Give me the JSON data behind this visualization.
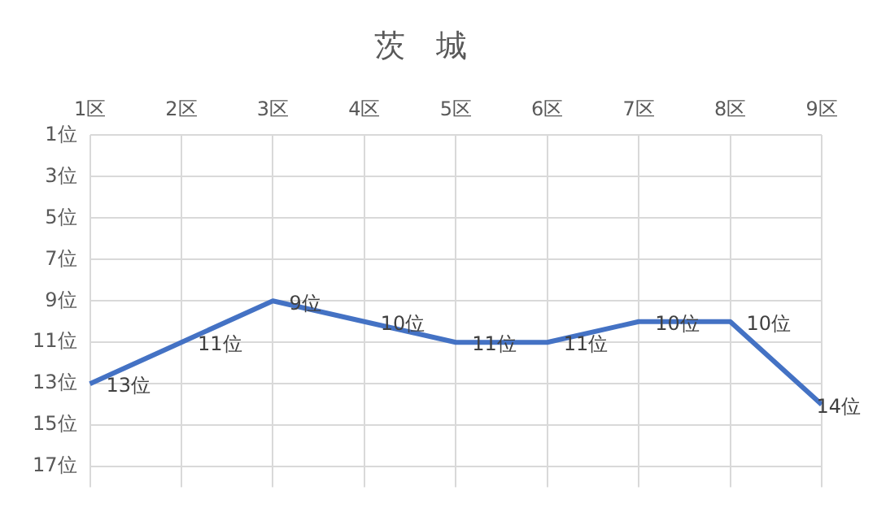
{
  "chart_data": {
    "type": "line",
    "title": "茨　城",
    "categories": [
      "1区",
      "2区",
      "3区",
      "4区",
      "5区",
      "6区",
      "7区",
      "8区",
      "9区"
    ],
    "series": [
      {
        "color": "#4472c4",
        "values": [
          13,
          11,
          9,
          10,
          11,
          11,
          10,
          10,
          14
        ],
        "value_labels": [
          "13位",
          "11位",
          "9位",
          "10位",
          "11位",
          "11位",
          "10位",
          "10位",
          "14位"
        ]
      }
    ],
    "ylim": [
      18,
      1
    ],
    "yticks": [
      {
        "value": 1,
        "label": "1位"
      },
      {
        "value": 3,
        "label": "3位"
      },
      {
        "value": 5,
        "label": "5位"
      },
      {
        "value": 7,
        "label": "7位"
      },
      {
        "value": 9,
        "label": "9位"
      },
      {
        "value": 11,
        "label": "11位"
      },
      {
        "value": 13,
        "label": "13位"
      },
      {
        "value": 15,
        "label": "15位"
      },
      {
        "value": 17,
        "label": "17位"
      }
    ],
    "grid": true,
    "legend": false,
    "marker": "none",
    "line_style": "solid"
  }
}
